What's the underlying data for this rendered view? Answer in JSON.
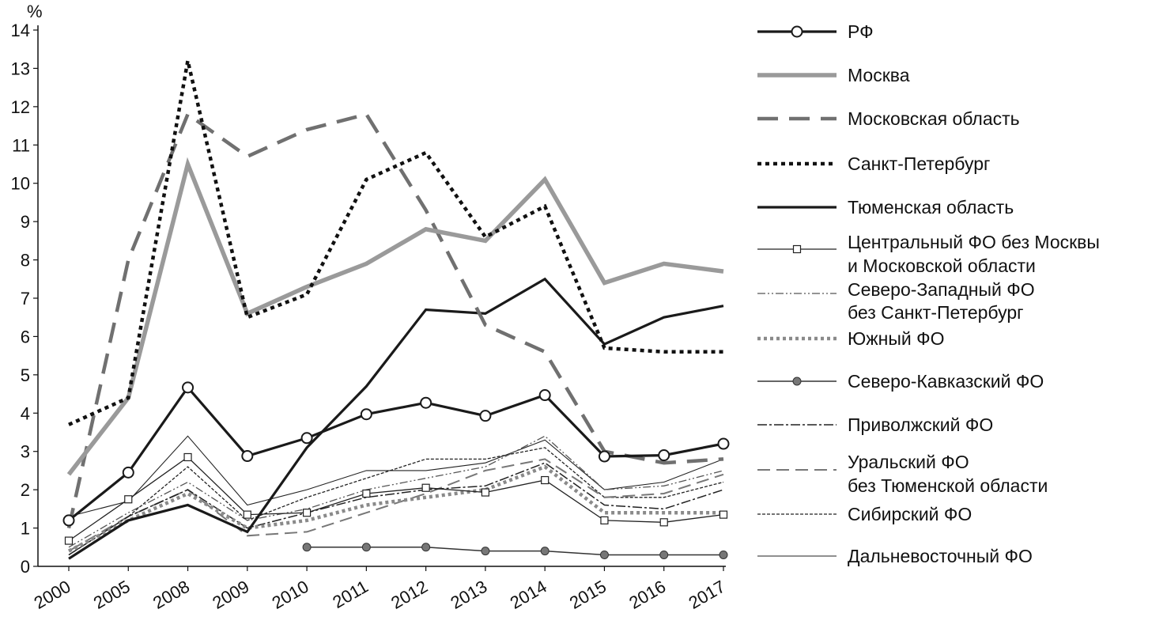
{
  "chart_data": {
    "type": "line",
    "ylabel": "%",
    "ylim": [
      0,
      14
    ],
    "yticks": [
      "0",
      "1",
      "2",
      "3",
      "4",
      "5",
      "6",
      "7",
      "8",
      "9",
      "10",
      "11",
      "12",
      "13",
      "14"
    ],
    "categories": [
      "2000",
      "2005",
      "2008",
      "2009",
      "2010",
      "2011",
      "2012",
      "2013",
      "2014",
      "2015",
      "2016",
      "2017"
    ],
    "grid": false,
    "legend_position": "right",
    "series": [
      {
        "name": "РФ",
        "label_lines": [
          "РФ"
        ],
        "style": "rf",
        "values": [
          1.2,
          2.45,
          4.67,
          2.88,
          3.35,
          3.97,
          4.27,
          3.93,
          4.47,
          2.87,
          2.9,
          3.2
        ]
      },
      {
        "name": "Москва",
        "label_lines": [
          "Москва"
        ],
        "style": "moscow",
        "values": [
          2.4,
          4.4,
          10.5,
          6.6,
          7.3,
          7.9,
          8.8,
          8.5,
          10.1,
          7.4,
          7.9,
          7.7
        ]
      },
      {
        "name": "Московская область",
        "label_lines": [
          "Московская область"
        ],
        "style": "mosobl",
        "values": [
          1.0,
          8.0,
          11.8,
          10.7,
          11.4,
          11.8,
          9.3,
          6.3,
          5.6,
          3.0,
          2.7,
          2.8
        ]
      },
      {
        "name": "Санкт-Петербург",
        "label_lines": [
          "Санкт-Петербург"
        ],
        "style": "spb",
        "values": [
          3.7,
          4.4,
          13.2,
          6.5,
          7.1,
          10.1,
          10.8,
          8.6,
          9.4,
          5.7,
          5.6,
          5.6
        ]
      },
      {
        "name": "Тюменская область",
        "label_lines": [
          "Тюменская область"
        ],
        "style": "tyumen",
        "values": [
          0.2,
          1.2,
          1.6,
          0.9,
          3.1,
          4.7,
          6.7,
          6.6,
          7.5,
          5.8,
          6.5,
          6.8
        ]
      },
      {
        "name": "Центральный ФО без Москвы и Московской области",
        "label_lines": [
          "Центральный ФО без Москвы",
          "и Московской области"
        ],
        "style": "cfo",
        "values": [
          0.67,
          1.75,
          2.85,
          1.35,
          1.4,
          1.9,
          2.05,
          1.93,
          2.25,
          1.2,
          1.15,
          1.35
        ]
      },
      {
        "name": "Северо-Западный ФО без Санкт-Петербург",
        "label_lines": [
          "Северо-Западный ФО",
          "без Санкт-Петербург"
        ],
        "style": "szfo",
        "values": [
          0.5,
          1.4,
          2.2,
          1.2,
          1.5,
          2.0,
          2.3,
          2.6,
          3.4,
          2.0,
          2.1,
          2.5
        ]
      },
      {
        "name": "Южный ФО",
        "label_lines": [
          "Южный ФО"
        ],
        "style": "yufo",
        "values": [
          0.4,
          1.2,
          1.9,
          1.0,
          1.2,
          1.6,
          1.8,
          2.0,
          2.6,
          1.4,
          1.4,
          1.4
        ]
      },
      {
        "name": "Северо-Кавказский ФО",
        "label_lines": [
          "Северо-Кавказский ФО"
        ],
        "style": "skfo",
        "values": [
          null,
          null,
          null,
          null,
          0.5,
          0.5,
          0.5,
          0.4,
          0.4,
          0.3,
          0.3,
          0.3
        ]
      },
      {
        "name": "Приволжский ФО",
        "label_lines": [
          "Приволжский ФО"
        ],
        "style": "pfo",
        "values": [
          0.3,
          1.3,
          2.0,
          1.0,
          1.4,
          1.8,
          2.0,
          2.1,
          2.7,
          1.6,
          1.5,
          2.0
        ]
      },
      {
        "name": "Уральский ФО без Тюменской области",
        "label_lines": [
          "Уральский ФО",
          "без Тюменской области"
        ],
        "style": "ufo",
        "values": [
          0.4,
          1.3,
          2.0,
          0.8,
          0.9,
          1.4,
          1.9,
          2.5,
          2.8,
          1.8,
          1.9,
          2.4
        ]
      },
      {
        "name": "Сибирский ФО",
        "label_lines": [
          "Сибирский ФО"
        ],
        "style": "sfo",
        "values": [
          0.3,
          1.3,
          2.6,
          1.2,
          1.8,
          2.3,
          2.8,
          2.8,
          3.1,
          1.8,
          1.8,
          2.2
        ]
      },
      {
        "name": "Дальневосточный ФО",
        "label_lines": [
          "Дальневосточный ФО"
        ],
        "style": "dvfo",
        "values": [
          1.3,
          1.7,
          3.4,
          1.6,
          2.0,
          2.5,
          2.5,
          2.7,
          3.3,
          2.0,
          2.2,
          2.8
        ]
      }
    ]
  }
}
